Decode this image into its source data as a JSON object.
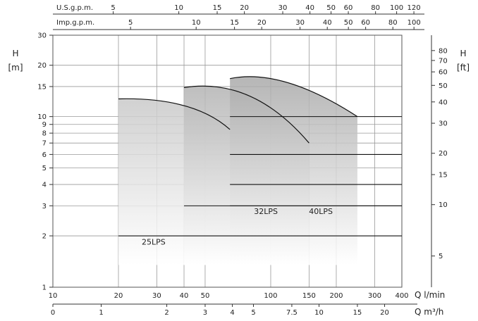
{
  "chart_data": {
    "type": "area",
    "x_axis_bottom_1": {
      "label": "Q l/min",
      "scale": "log",
      "range": [
        10,
        400
      ],
      "ticks": [
        "10",
        "20",
        "30",
        "40",
        "50",
        "100",
        "150",
        "200",
        "300",
        "400"
      ]
    },
    "x_axis_bottom_2": {
      "label": "Q m³/h",
      "ticks": [
        "0",
        "1",
        "2",
        "3",
        "4",
        "5",
        "7.5",
        "10",
        "15",
        "20"
      ]
    },
    "x_axis_top_1": {
      "label": "U.S.g.p.m.",
      "ticks": [
        "5",
        "10",
        "15",
        "20",
        "30",
        "40",
        "50",
        "60",
        "80",
        "100",
        "120"
      ]
    },
    "x_axis_top_2": {
      "label": "Imp.g.p.m.",
      "ticks": [
        "5",
        "10",
        "15",
        "20",
        "30",
        "40",
        "50",
        "60",
        "80",
        "100"
      ]
    },
    "y_axis_left": {
      "label_top": "H",
      "label_unit": "[m]",
      "scale": "log",
      "range": [
        1,
        30
      ],
      "ticks": [
        "1",
        "2",
        "3",
        "4",
        "5",
        "6",
        "7",
        "8",
        "9",
        "10",
        "15",
        "20",
        "30"
      ]
    },
    "y_axis_right": {
      "label_top": "H",
      "label_unit": "[ft]",
      "ticks": [
        "5",
        "10",
        "15",
        "20",
        "30",
        "40",
        "50",
        "60",
        "70",
        "80"
      ]
    },
    "series": [
      {
        "name": "25LPS",
        "q_min": 20,
        "q_max": 65,
        "h_top": [
          [
            20,
            12.7
          ],
          [
            40,
            11.6
          ],
          [
            65,
            8.4
          ]
        ],
        "h_lines": [
          2
        ]
      },
      {
        "name": "32LPS",
        "q_min": 40,
        "q_max": 150,
        "h_top": [
          [
            40,
            14.8
          ],
          [
            80,
            13.2
          ],
          [
            150,
            7.0
          ]
        ],
        "h_lines": [
          3
        ]
      },
      {
        "name": "40LPS",
        "q_min": 65,
        "q_max": 250,
        "h_top": [
          [
            65,
            16.7
          ],
          [
            120,
            15.8
          ],
          [
            250,
            10
          ]
        ],
        "h_lines": [
          3,
          4,
          6,
          10
        ]
      }
    ],
    "grid": true
  }
}
